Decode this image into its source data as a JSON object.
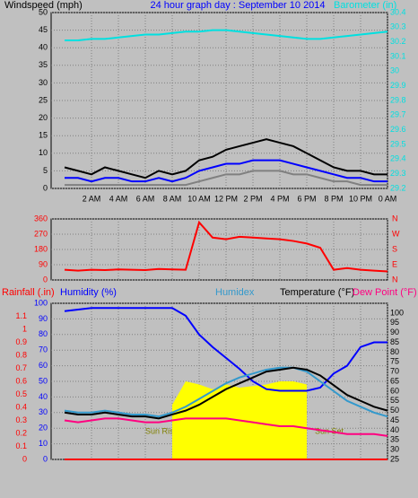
{
  "chart_data": [
    {
      "type": "line",
      "title": "24 hour graph day : September 10 2014",
      "title_color": "#0000ff",
      "ylabel": "Windspeed (mph)",
      "ylabel_color": "#000000",
      "y2label": "Barometer (in)",
      "y2label_color": "#00e0e0",
      "x": [
        0,
        1,
        2,
        3,
        4,
        5,
        6,
        7,
        8,
        9,
        10,
        11,
        12,
        13,
        14,
        15,
        16,
        17,
        18,
        19,
        20,
        21,
        22,
        23,
        24
      ],
      "xlim": [
        -1,
        24
      ],
      "xticks": [
        {
          "value": 2,
          "label": "2 AM"
        },
        {
          "value": 4,
          "label": "4 AM"
        },
        {
          "value": 6,
          "label": "6 AM"
        },
        {
          "value": 8,
          "label": "8 AM"
        },
        {
          "value": 10,
          "label": "10 AM"
        },
        {
          "value": 12,
          "label": "12 PM"
        },
        {
          "value": 14,
          "label": "2 PM"
        },
        {
          "value": 16,
          "label": "4 PM"
        },
        {
          "value": 18,
          "label": "6 PM"
        },
        {
          "value": 20,
          "label": "8 PM"
        },
        {
          "value": 22,
          "label": "10 PM"
        },
        {
          "value": 24,
          "label": "0 AM"
        }
      ],
      "ylim": [
        0,
        50
      ],
      "yticks": [
        0,
        5,
        10,
        15,
        20,
        25,
        30,
        35,
        40,
        45,
        50
      ],
      "ytick_color": "#000000",
      "y2lim": [
        29.2,
        30.4
      ],
      "y2ticks": [
        29.2,
        29.3,
        29.4,
        29.5,
        29.6,
        29.7,
        29.8,
        29.9,
        30,
        30.1,
        30.2,
        30.3,
        30.4
      ],
      "y2tick_color": "#00e0e0",
      "grid": "y",
      "series": [
        {
          "color": "#000000",
          "axis": "y",
          "values": [
            6,
            5,
            4,
            6,
            5,
            4,
            3,
            5,
            4,
            5,
            8,
            9,
            11,
            12,
            13,
            14,
            13,
            12,
            10,
            8,
            6,
            5,
            5,
            4,
            4
          ]
        },
        {
          "color": "#808080",
          "axis": "y",
          "values": [
            1,
            1,
            1,
            1,
            1,
            1,
            1,
            1,
            1,
            1,
            2,
            3,
            4,
            4,
            5,
            5,
            5,
            4,
            4,
            3,
            2,
            2,
            1,
            1,
            1
          ]
        },
        {
          "color": "#0000ff",
          "axis": "y",
          "values": [
            3,
            3,
            2,
            3,
            3,
            2,
            2,
            3,
            2,
            3,
            5,
            6,
            7,
            7,
            8,
            8,
            8,
            7,
            6,
            5,
            4,
            3,
            3,
            2,
            2
          ]
        },
        {
          "color": "#00e0e0",
          "axis": "y2",
          "values": [
            30.21,
            30.21,
            30.22,
            30.22,
            30.23,
            30.24,
            30.25,
            30.25,
            30.26,
            30.27,
            30.27,
            30.28,
            30.28,
            30.27,
            30.26,
            30.25,
            30.24,
            30.23,
            30.22,
            30.22,
            30.23,
            30.24,
            30.25,
            30.26,
            30.27
          ]
        }
      ]
    },
    {
      "type": "line",
      "x": [
        0,
        1,
        2,
        3,
        4,
        5,
        6,
        7,
        8,
        9,
        10,
        11,
        12,
        13,
        14,
        15,
        16,
        17,
        18,
        19,
        20,
        21,
        22,
        23,
        24
      ],
      "xlim": [
        -1,
        24
      ],
      "ylim": [
        0,
        360
      ],
      "yticks": [
        0,
        90,
        180,
        270,
        360
      ],
      "ytick_color": "#ff0000",
      "y2lim": [
        0,
        360
      ],
      "y2ticks": [
        {
          "value": 0,
          "label": "N"
        },
        {
          "value": 90,
          "label": "E"
        },
        {
          "value": 180,
          "label": "S"
        },
        {
          "value": 270,
          "label": "W"
        },
        {
          "value": 360,
          "label": "N"
        }
      ],
      "y2tick_color": "#ff0000",
      "grid": "y",
      "series": [
        {
          "color": "#ff0000",
          "axis": "y",
          "values": [
            60,
            55,
            60,
            58,
            62,
            60,
            58,
            65,
            62,
            60,
            340,
            250,
            240,
            255,
            250,
            245,
            240,
            230,
            215,
            190,
            60,
            70,
            60,
            55,
            50
          ]
        }
      ]
    },
    {
      "type": "line",
      "x": [
        0,
        1,
        2,
        3,
        4,
        5,
        6,
        7,
        8,
        9,
        10,
        11,
        12,
        13,
        14,
        15,
        16,
        17,
        18,
        19,
        20,
        21,
        22,
        23,
        24
      ],
      "xlim": [
        -1,
        24
      ],
      "ylim": [
        0,
        1.2
      ],
      "yticks": [
        0,
        0.1,
        0.2,
        0.3,
        0.4,
        0.5,
        0.6,
        0.7,
        0.8,
        0.9,
        1,
        1.1
      ],
      "ytick_color": "#ff0000",
      "y3lim": [
        0,
        100
      ],
      "y3ticks": [
        0,
        10,
        20,
        30,
        40,
        50,
        60,
        70,
        80,
        90,
        100
      ],
      "y3tick_color": "#0000ff",
      "y2lim": [
        25,
        105
      ],
      "y2ticks": [
        25,
        30,
        35,
        40,
        45,
        50,
        55,
        60,
        65,
        70,
        75,
        80,
        85,
        90,
        95,
        100
      ],
      "y2tick_color": "#000000",
      "grid": "y3",
      "annotations": [
        "Sun Rise",
        "Sun Set"
      ],
      "series": [
        {
          "color": "#ffff00",
          "axis": "y3",
          "fill": true,
          "values": [
            null,
            null,
            null,
            null,
            null,
            null,
            null,
            null,
            35,
            50,
            48,
            45,
            48,
            46,
            47,
            48,
            50,
            50,
            48,
            null,
            null,
            null,
            null,
            null,
            null
          ]
        },
        {
          "name": "Rainfall (.in)",
          "color": "#ff0000",
          "axis": "y",
          "values": [
            0,
            0,
            0,
            0,
            0,
            0,
            0,
            0,
            0,
            0,
            0,
            0,
            0,
            0,
            0,
            0,
            0,
            0,
            0,
            0,
            0,
            0,
            0,
            0,
            0
          ]
        },
        {
          "name": "Humidity (%)",
          "color": "#0000ff",
          "axis": "y3",
          "values": [
            95,
            96,
            97,
            97,
            97,
            97,
            97,
            97,
            97,
            92,
            80,
            72,
            65,
            58,
            50,
            45,
            44,
            44,
            44,
            46,
            55,
            60,
            72,
            75,
            75
          ]
        },
        {
          "name": "Humidex",
          "color": "#3399cc",
          "axis": "y2",
          "values": [
            50,
            49,
            49,
            50,
            49,
            48,
            48,
            47,
            49,
            52,
            56,
            60,
            64,
            67,
            69,
            71,
            72,
            72,
            70,
            65,
            60,
            55,
            52,
            49,
            47
          ]
        },
        {
          "name": "Temperature (°F)",
          "color": "#000000",
          "axis": "y2",
          "values": [
            49,
            48,
            48,
            49,
            48,
            47,
            47,
            46,
            48,
            50,
            53,
            57,
            61,
            64,
            67,
            70,
            71,
            72,
            71,
            68,
            63,
            58,
            55,
            52,
            50
          ]
        },
        {
          "name": "Dew Point (°F)",
          "color": "#ff0080",
          "axis": "y2",
          "values": [
            45,
            44,
            45,
            46,
            46,
            45,
            44,
            44,
            45,
            46,
            46,
            46,
            46,
            45,
            44,
            43,
            42,
            42,
            41,
            40,
            39,
            38,
            38,
            38,
            37
          ]
        }
      ]
    }
  ]
}
